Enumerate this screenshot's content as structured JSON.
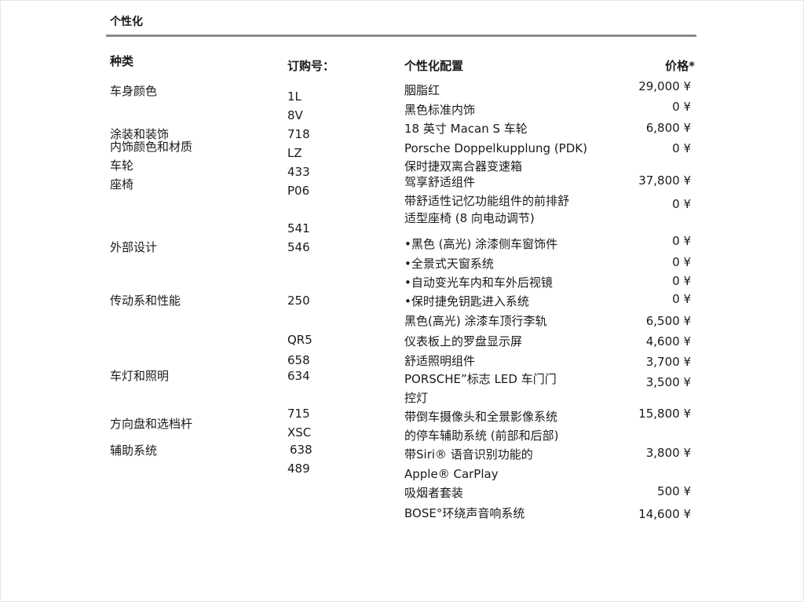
{
  "section_title": "个性化",
  "headers": {
    "category": "种类",
    "order_no": "订购号：",
    "config": "个性化配置",
    "price": "价格*"
  },
  "categories": [
    "车身颜色",
    "涂装和装饰",
    "内饰颜色和材质",
    "车轮",
    "座椅",
    "外部设计",
    "传动系和性能",
    "车灯和照明",
    "方向盘和选档杆",
    "辅助系统"
  ],
  "codes": [
    "1L",
    "8V",
    "718",
    "LZ",
    "433",
    "P06",
    "541",
    "546",
    "250",
    "QR5",
    "658",
    "634",
    "715",
    "XSC",
    "638",
    "489"
  ],
  "config_lines": [
    "胭脂红",
    "黑色标准内饰",
    "18 英寸 Macan S 车轮",
    " Porsche Doppelkupplung (PDK)",
    "保时捷双离合器变速箱",
    "驾享舒适组件",
    "带舒适性记忆功能组件的前排舒",
    "适型座椅 (8 向电动调节)",
    "•黑色 (高光) 涂漆侧车窗饰件",
    "•全景式天窗系统",
    "•自动变光车内和车外后视镜",
    "•保时捷免钥匙进入系统",
    "黑色(高光) 涂漆车顶行李轨",
    "仪表板上的罗盘显示屏",
    "舒适照明组件",
    "PORSCHE”标志 LED 车门门",
    "控灯",
    "带倒车摄像头和全景影像系统",
    "的停车辅助系统 (前部和后部)",
    "带Siri® 语音识别功能的",
    "Apple® CarPlay",
    "吸烟者套装",
    "BOSE°环绕声音响系统"
  ],
  "prices": [
    "29,000 ¥",
    "0 ¥",
    "6,800 ¥",
    "0 ¥",
    "37,800 ¥",
    "0 ¥",
    "0 ¥",
    "0 ¥",
    "0 ¥",
    "0 ¥",
    "6,500 ¥",
    "4,600 ¥",
    "3,700 ¥",
    "3,500 ¥",
    "15,800 ¥",
    "3,800 ¥",
    "500 ¥",
    "14,600 ¥"
  ]
}
